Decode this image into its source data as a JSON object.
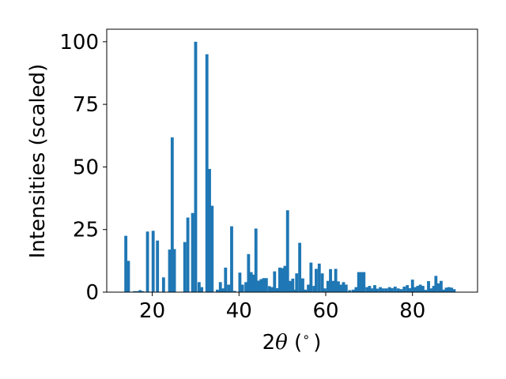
{
  "chart_data": {
    "type": "bar",
    "xlabel_parts": [
      "2",
      "θ",
      " (",
      "∘",
      ")"
    ],
    "ylabel": "Intensities (scaled)",
    "xlim": [
      9.5,
      95
    ],
    "ylim": [
      0,
      105
    ],
    "xticks": [
      20,
      40,
      60,
      80
    ],
    "yticks": [
      0,
      25,
      50,
      75,
      100
    ],
    "bar_color": "#1f77b4",
    "bar_width": 0.7,
    "grid": false,
    "points": [
      {
        "x": 13.9,
        "y": 22.5
      },
      {
        "x": 14.5,
        "y": 12.5
      },
      {
        "x": 15.9,
        "y": 0.4
      },
      {
        "x": 16.6,
        "y": 0.4
      },
      {
        "x": 17.2,
        "y": 0.8
      },
      {
        "x": 17.8,
        "y": 0.4
      },
      {
        "x": 18.9,
        "y": 24.2
      },
      {
        "x": 20.2,
        "y": 24.5
      },
      {
        "x": 21.2,
        "y": 20.6
      },
      {
        "x": 22.6,
        "y": 5.9
      },
      {
        "x": 24.0,
        "y": 17.0
      },
      {
        "x": 24.6,
        "y": 61.8
      },
      {
        "x": 25.1,
        "y": 17.2
      },
      {
        "x": 27.5,
        "y": 20.0
      },
      {
        "x": 28.2,
        "y": 29.8
      },
      {
        "x": 29.3,
        "y": 31.6
      },
      {
        "x": 30.0,
        "y": 100.0
      },
      {
        "x": 30.8,
        "y": 4.0
      },
      {
        "x": 31.4,
        "y": 2.0
      },
      {
        "x": 32.6,
        "y": 95.0
      },
      {
        "x": 33.2,
        "y": 49.2
      },
      {
        "x": 33.8,
        "y": 34.5
      },
      {
        "x": 35.0,
        "y": 1.0
      },
      {
        "x": 35.7,
        "y": 4.0
      },
      {
        "x": 36.3,
        "y": 1.5
      },
      {
        "x": 36.9,
        "y": 9.8
      },
      {
        "x": 37.6,
        "y": 3.0
      },
      {
        "x": 38.3,
        "y": 26.3
      },
      {
        "x": 39.0,
        "y": 0.5
      },
      {
        "x": 40.2,
        "y": 7.8
      },
      {
        "x": 40.8,
        "y": 3.0
      },
      {
        "x": 41.6,
        "y": 4.0
      },
      {
        "x": 42.2,
        "y": 15.2
      },
      {
        "x": 42.8,
        "y": 8.0
      },
      {
        "x": 43.3,
        "y": 7.0
      },
      {
        "x": 43.9,
        "y": 25.4
      },
      {
        "x": 44.5,
        "y": 4.6
      },
      {
        "x": 45.1,
        "y": 5.2
      },
      {
        "x": 45.7,
        "y": 5.6
      },
      {
        "x": 46.3,
        "y": 5.6
      },
      {
        "x": 47.0,
        "y": 2.4
      },
      {
        "x": 47.6,
        "y": 2.0
      },
      {
        "x": 48.2,
        "y": 8.3
      },
      {
        "x": 48.8,
        "y": 1.6
      },
      {
        "x": 49.4,
        "y": 9.8
      },
      {
        "x": 50.0,
        "y": 9.6
      },
      {
        "x": 50.6,
        "y": 10.5
      },
      {
        "x": 51.2,
        "y": 32.7
      },
      {
        "x": 51.8,
        "y": 4.5
      },
      {
        "x": 52.4,
        "y": 5.4
      },
      {
        "x": 53.0,
        "y": 1.0
      },
      {
        "x": 53.3,
        "y": 7.5
      },
      {
        "x": 54.0,
        "y": 19.7
      },
      {
        "x": 54.7,
        "y": 5.5
      },
      {
        "x": 55.3,
        "y": 1.0
      },
      {
        "x": 56.0,
        "y": 3.0
      },
      {
        "x": 56.6,
        "y": 11.8
      },
      {
        "x": 57.3,
        "y": 2.5
      },
      {
        "x": 57.8,
        "y": 9.3
      },
      {
        "x": 58.5,
        "y": 11.4
      },
      {
        "x": 59.2,
        "y": 7.5
      },
      {
        "x": 59.8,
        "y": 1.5
      },
      {
        "x": 60.5,
        "y": 4.5
      },
      {
        "x": 61.1,
        "y": 9.2
      },
      {
        "x": 61.7,
        "y": 4.5
      },
      {
        "x": 62.3,
        "y": 9.3
      },
      {
        "x": 62.9,
        "y": 4.3
      },
      {
        "x": 63.5,
        "y": 3.0
      },
      {
        "x": 64.1,
        "y": 4.0
      },
      {
        "x": 64.7,
        "y": 3.0
      },
      {
        "x": 65.5,
        "y": 0.8
      },
      {
        "x": 66.3,
        "y": 1.0
      },
      {
        "x": 67.0,
        "y": 2.0
      },
      {
        "x": 67.6,
        "y": 8.0
      },
      {
        "x": 68.2,
        "y": 8.0
      },
      {
        "x": 68.8,
        "y": 8.0
      },
      {
        "x": 69.5,
        "y": 2.0
      },
      {
        "x": 70.1,
        "y": 2.5
      },
      {
        "x": 70.7,
        "y": 1.5
      },
      {
        "x": 71.3,
        "y": 2.8
      },
      {
        "x": 71.9,
        "y": 1.4
      },
      {
        "x": 72.6,
        "y": 2.0
      },
      {
        "x": 73.3,
        "y": 1.5
      },
      {
        "x": 74.0,
        "y": 1.5
      },
      {
        "x": 74.7,
        "y": 2.0
      },
      {
        "x": 75.3,
        "y": 1.6
      },
      {
        "x": 76.0,
        "y": 2.2
      },
      {
        "x": 76.7,
        "y": 1.5
      },
      {
        "x": 77.4,
        "y": 1.2
      },
      {
        "x": 78.1,
        "y": 2.2
      },
      {
        "x": 78.8,
        "y": 2.8
      },
      {
        "x": 79.4,
        "y": 1.6
      },
      {
        "x": 80.0,
        "y": 5.0
      },
      {
        "x": 80.6,
        "y": 2.0
      },
      {
        "x": 81.2,
        "y": 2.5
      },
      {
        "x": 81.8,
        "y": 3.0
      },
      {
        "x": 82.4,
        "y": 2.5
      },
      {
        "x": 83.0,
        "y": 0.9
      },
      {
        "x": 83.7,
        "y": 4.4
      },
      {
        "x": 84.3,
        "y": 1.5
      },
      {
        "x": 84.9,
        "y": 2.5
      },
      {
        "x": 85.4,
        "y": 6.5
      },
      {
        "x": 86.0,
        "y": 3.5
      },
      {
        "x": 86.6,
        "y": 4.5
      },
      {
        "x": 87.2,
        "y": 1.0
      },
      {
        "x": 87.8,
        "y": 1.8
      },
      {
        "x": 88.4,
        "y": 2.0
      },
      {
        "x": 89.0,
        "y": 1.8
      },
      {
        "x": 89.6,
        "y": 1.2
      }
    ]
  }
}
